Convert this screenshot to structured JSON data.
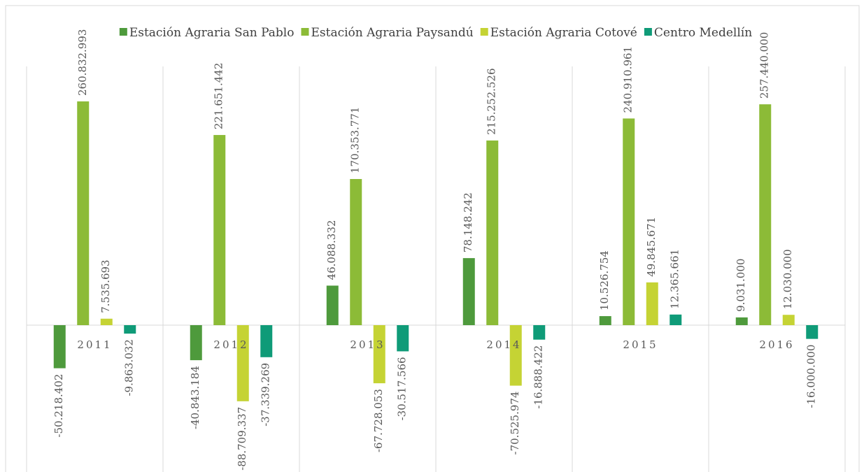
{
  "chart_data": {
    "type": "bar",
    "categories": [
      "2011",
      "2012",
      "2013",
      "2014",
      "2015",
      "2016"
    ],
    "series": [
      {
        "name": "Estación Agraria San Pablo",
        "color": "#4e9a3c",
        "values": [
          -50218402,
          -40843184,
          46088332,
          78148242,
          10526754,
          9031000
        ],
        "value_labels": [
          "-50.218.402",
          "-40.843.184",
          "46.088.332",
          "78.148.242",
          "10.526.754",
          "9.031.000"
        ]
      },
      {
        "name": "Estación Agraria Paysandú",
        "color": "#8cbb37",
        "values": [
          260832993,
          221651442,
          170353771,
          215252526,
          240910961,
          257440000
        ],
        "value_labels": [
          "260.832.993",
          "221.651.442",
          "170.353.771",
          "215.252.526",
          "240.910.961",
          "257.440.000"
        ]
      },
      {
        "name": "Estación Agraria Cotové",
        "color": "#c5d334",
        "values": [
          7535693,
          -88709337,
          -67728053,
          -70525974,
          49845671,
          12030000
        ],
        "value_labels": [
          "7.535.693",
          "-88.709.337",
          "-67.728.053",
          "-70.525.974",
          "49.845.671",
          "12.030.000"
        ]
      },
      {
        "name": "Centro Medellín",
        "color": "#0f9b78",
        "values": [
          -9863032,
          -37339269,
          -30517566,
          -16888422,
          12365661,
          -16000000
        ],
        "value_labels": [
          "-9.863.032",
          "-37.339.269",
          "-30.517.566",
          "-16.888.422",
          "12.365.661",
          "-16.000.000"
        ]
      }
    ],
    "legend": "top"
  }
}
